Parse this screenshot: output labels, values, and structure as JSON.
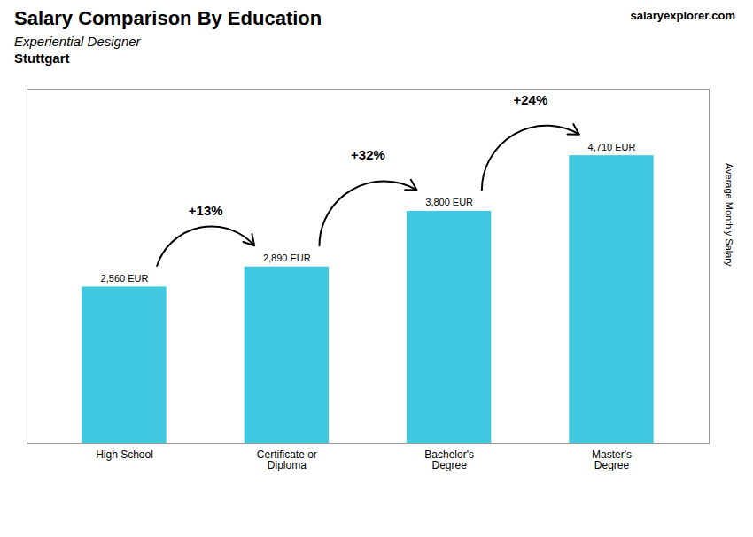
{
  "chart_data": {
    "type": "bar",
    "title": "Salary Comparison By Education",
    "subtitle": [
      "Experiential Designer",
      "Stuttgart"
    ],
    "ylabel": "Average Monthly Salary",
    "categories": [
      "High School",
      "Certificate or\nDiploma",
      "Bachelor's\nDegree",
      "Master's\nDegree"
    ],
    "values": [
      2560,
      2890,
      3800,
      4710
    ],
    "value_labels": [
      "2,560 EUR",
      "2,890 EUR",
      "3,800 EUR",
      "4,710 EUR"
    ],
    "data_labels": true,
    "color": "#40c8e0",
    "ylim": [
      0,
      5800
    ],
    "tick_labels": "x",
    "grid": false,
    "annotations": [
      {
        "text": "+13%",
        "from": "High School",
        "to": "Certificate or\nDiploma"
      },
      {
        "text": "+32%",
        "from": "Certificate or\nDiploma",
        "to": "Bachelor's\nDegree"
      },
      {
        "text": "+24%",
        "from": "Bachelor's\nDegree",
        "to": "Master's\nDegree"
      },
      {
        "text": "salaryexplorer.com"
      }
    ]
  }
}
